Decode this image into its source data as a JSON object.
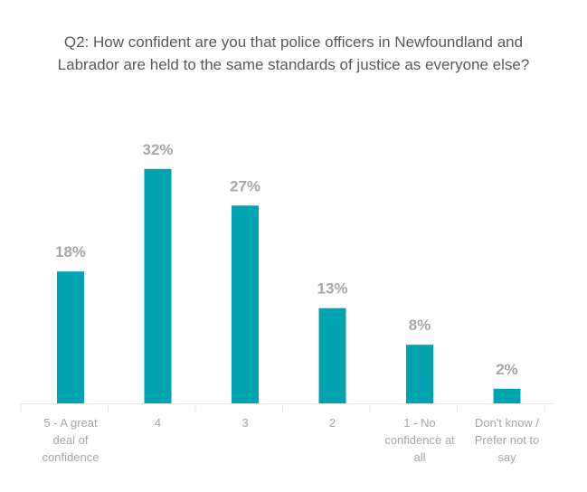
{
  "chart_data": {
    "type": "bar",
    "title_lines": [
      "Q2: How confident are you that police officers in Newfoundland and",
      "Labrador are held to the same standards of justice as everyone else?"
    ],
    "categories": [
      [
        "5 - A great",
        "deal of",
        "confidence"
      ],
      [
        "4"
      ],
      [
        "3"
      ],
      [
        "2"
      ],
      [
        "1 - No",
        "confidence at",
        "all"
      ],
      [
        "Don't know /",
        "Prefer not to",
        "say"
      ]
    ],
    "values": [
      18,
      32,
      27,
      13,
      8,
      2
    ],
    "data_labels": [
      "18%",
      "32%",
      "27%",
      "13%",
      "8%",
      "2%"
    ],
    "unit": "%",
    "grid": false,
    "legend": "none",
    "colors": {
      "bar": "#00a3b0",
      "label": "#a6a6a6",
      "title": "#595959",
      "axis": "#e6e6e6"
    }
  }
}
